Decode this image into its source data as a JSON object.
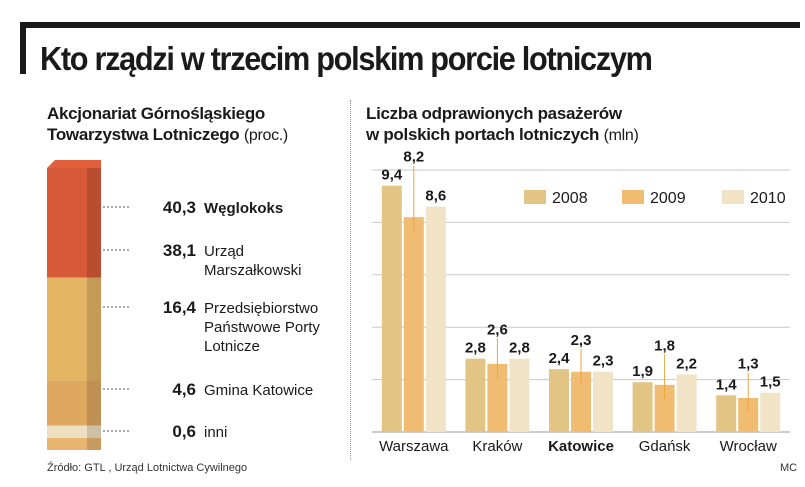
{
  "title": "Kto rządzi w trzecim polskim porcie lotniczym",
  "left_panel": {
    "heading_line1": "Akcjonariat Górnośląskiego",
    "heading_line2": "Towarzystwa Lotniczego",
    "unit": "(proc.)"
  },
  "right_panel": {
    "heading_line1": "Liczba odprawionych pasażerów",
    "heading_line2": "w polskich portach lotniczych",
    "unit": "(mln)"
  },
  "source": "Źródło: GTL , Urząd Lotnictwa Cywilnego",
  "credit": "MC",
  "chart_data": [
    {
      "type": "bar",
      "stacked": true,
      "segments": [
        {
          "value": 0.6,
          "label_lines": [
            "inni"
          ],
          "bold": false,
          "color": "#E8B56E"
        },
        {
          "value": 4.6,
          "label_lines": [
            "Gmina Katowice"
          ],
          "bold": false,
          "color": "#EFDFC2"
        },
        {
          "value": 16.4,
          "label_lines": [
            "Przedsiębiorstwo",
            "Państwowe Porty",
            "Lotnicze"
          ],
          "bold": false,
          "color": "#DFA860"
        },
        {
          "value": 38.1,
          "label_lines": [
            "Urząd",
            "Marszałkowski"
          ],
          "bold": false,
          "color": "#E3B464"
        },
        {
          "value": 40.3,
          "label_lines": [
            "Węglokoks"
          ],
          "bold": true,
          "color": "#D65A38"
        }
      ],
      "value_labels": [
        "0,6",
        "4,6",
        "16,4",
        "38,1",
        "40,3"
      ],
      "ylim": [
        0,
        100
      ]
    },
    {
      "type": "bar",
      "categories": [
        "Warszawa",
        "Kraków",
        "Katowice",
        "Gdańsk",
        "Wrocław"
      ],
      "highlight_category": "Katowice",
      "series": [
        {
          "name": "2008",
          "color": "#E2C485",
          "values": [
            9.4,
            2.8,
            2.4,
            1.9,
            1.4
          ],
          "labels": [
            "9,4",
            "2,8",
            "2,4",
            "1,9",
            "1,4"
          ]
        },
        {
          "name": "2009",
          "color": "#F0BC72",
          "values": [
            8.2,
            2.6,
            2.3,
            1.8,
            1.3
          ],
          "labels": [
            "8,2",
            "2,6",
            "2,3",
            "1,8",
            "1,3"
          ]
        },
        {
          "name": "2010",
          "color": "#F1E4C6",
          "values": [
            8.6,
            2.8,
            2.3,
            2.2,
            1.5
          ],
          "labels": [
            "8,6",
            "2,8",
            "2,3",
            "2,2",
            "1,5"
          ]
        }
      ],
      "legend_position": "top-right",
      "grid": true,
      "ylim": [
        0,
        10
      ]
    }
  ]
}
